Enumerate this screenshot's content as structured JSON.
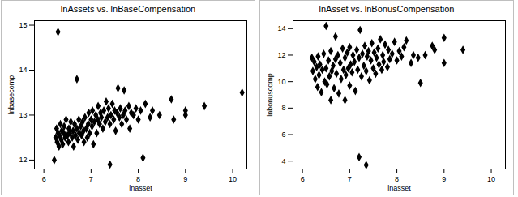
{
  "chart_data": [
    {
      "type": "scatter",
      "title": "lnAssets vs. lnBaseCompensation",
      "x_label": "lnasset",
      "y_label": "lnbasecomp",
      "color": "#000000",
      "marker": "diamond",
      "grid": false,
      "xlim": [
        5.8,
        10.3
      ],
      "ylim": [
        11.8,
        15.1
      ],
      "xticks": [
        6,
        7,
        8,
        9,
        10
      ],
      "yticks": [
        12,
        13,
        14,
        15
      ],
      "x": [
        6.22,
        6.25,
        6.27,
        6.28,
        6.3,
        6.3,
        6.32,
        6.33,
        6.35,
        6.37,
        6.38,
        6.4,
        6.42,
        6.43,
        6.45,
        6.47,
        6.5,
        6.52,
        6.53,
        6.55,
        6.57,
        6.6,
        6.62,
        6.63,
        6.65,
        6.67,
        6.7,
        6.7,
        6.72,
        6.74,
        6.75,
        6.78,
        6.8,
        6.82,
        6.84,
        6.85,
        6.87,
        6.9,
        6.92,
        6.94,
        6.95,
        6.97,
        7.0,
        7.02,
        7.03,
        7.05,
        7.07,
        7.1,
        7.12,
        7.14,
        7.15,
        7.18,
        7.2,
        7.22,
        7.25,
        7.27,
        7.3,
        7.32,
        7.35,
        7.37,
        7.4,
        7.4,
        7.42,
        7.45,
        7.48,
        7.5,
        7.52,
        7.55,
        7.57,
        7.6,
        7.62,
        7.65,
        7.68,
        7.7,
        7.72,
        7.75,
        7.8,
        7.82,
        7.85,
        7.9,
        7.95,
        8.0,
        8.05,
        8.1,
        8.15,
        8.25,
        8.3,
        8.45,
        8.7,
        8.75,
        9.0,
        9.0,
        9.4,
        10.2
      ],
      "values": [
        12.0,
        12.5,
        12.7,
        12.4,
        12.6,
        14.85,
        12.3,
        12.55,
        12.8,
        12.45,
        12.65,
        12.35,
        12.6,
        12.75,
        12.5,
        12.9,
        12.55,
        12.4,
        12.7,
        12.6,
        12.85,
        12.5,
        12.65,
        12.3,
        12.8,
        12.55,
        13.8,
        12.7,
        12.45,
        12.9,
        12.6,
        12.75,
        12.55,
        12.85,
        12.65,
        12.4,
        12.95,
        12.7,
        12.5,
        12.8,
        13.05,
        12.6,
        12.9,
        12.75,
        13.1,
        12.35,
        12.85,
        13.0,
        12.6,
        12.9,
        13.2,
        12.8,
        13.05,
        12.95,
        12.7,
        13.1,
        12.85,
        13.3,
        12.95,
        13.15,
        11.9,
        12.8,
        13.0,
        13.25,
        12.9,
        13.1,
        12.65,
        13.05,
        13.6,
        12.95,
        13.15,
        12.8,
        13.0,
        13.55,
        13.1,
        12.9,
        13.2,
        12.7,
        13.05,
        13.0,
        13.15,
        12.9,
        13.1,
        12.05,
        13.25,
        12.95,
        13.1,
        13.0,
        13.35,
        12.9,
        13.1,
        13.0,
        13.2,
        13.5
      ]
    },
    {
      "type": "scatter",
      "title": "lnAsset vs. lnBonusCompensation",
      "x_label": "lnasset",
      "y_label": "lnbonuscomp",
      "color": "#000000",
      "marker": "diamond",
      "grid": false,
      "xlim": [
        5.8,
        10.3
      ],
      "ylim": [
        3.4,
        14.6
      ],
      "xticks": [
        6,
        7,
        8,
        9,
        10
      ],
      "yticks": [
        4,
        6,
        8,
        10,
        12,
        14
      ],
      "x": [
        6.2,
        6.22,
        6.25,
        6.27,
        6.3,
        6.32,
        6.33,
        6.35,
        6.37,
        6.4,
        6.42,
        6.45,
        6.47,
        6.5,
        6.5,
        6.52,
        6.55,
        6.57,
        6.6,
        6.6,
        6.62,
        6.65,
        6.67,
        6.7,
        6.7,
        6.72,
        6.75,
        6.77,
        6.8,
        6.82,
        6.85,
        6.87,
        6.9,
        6.9,
        6.92,
        6.95,
        6.97,
        7.0,
        7.0,
        7.02,
        7.05,
        7.07,
        7.1,
        7.12,
        7.15,
        7.17,
        7.2,
        7.2,
        7.22,
        7.25,
        7.27,
        7.3,
        7.32,
        7.35,
        7.35,
        7.37,
        7.4,
        7.42,
        7.45,
        7.47,
        7.5,
        7.52,
        7.55,
        7.57,
        7.6,
        7.62,
        7.65,
        7.68,
        7.7,
        7.72,
        7.75,
        7.8,
        7.82,
        7.85,
        7.9,
        7.95,
        8.0,
        8.05,
        8.1,
        8.15,
        8.2,
        8.3,
        8.35,
        8.45,
        8.5,
        8.6,
        8.75,
        8.8,
        9.0,
        9.0,
        9.4
      ],
      "values": [
        11.8,
        10.8,
        11.5,
        10.2,
        11.1,
        9.6,
        11.9,
        10.5,
        11.3,
        9.2,
        10.9,
        12.1,
        10.0,
        14.2,
        11.0,
        9.8,
        11.6,
        10.4,
        8.6,
        12.3,
        10.8,
        11.2,
        9.5,
        13.4,
        11.7,
        10.6,
        12.0,
        9.1,
        11.4,
        10.2,
        12.5,
        10.9,
        8.6,
        11.8,
        10.5,
        12.2,
        11.0,
        9.7,
        12.6,
        11.3,
        10.7,
        12.0,
        11.5,
        9.3,
        12.4,
        10.9,
        4.3,
        11.8,
        13.9,
        10.4,
        12.1,
        11.2,
        12.7,
        3.7,
        10.8,
        11.9,
        12.3,
        10.1,
        11.6,
        12.9,
        11.0,
        12.2,
        10.6,
        11.8,
        12.5,
        11.3,
        13.2,
        10.9,
        12.0,
        11.5,
        12.8,
        11.1,
        12.4,
        11.7,
        12.1,
        13.0,
        11.6,
        12.3,
        11.9,
        12.6,
        13.1,
        11.4,
        12.0,
        11.8,
        9.9,
        12.0,
        12.7,
        12.4,
        13.3,
        11.4,
        12.4
      ]
    }
  ]
}
